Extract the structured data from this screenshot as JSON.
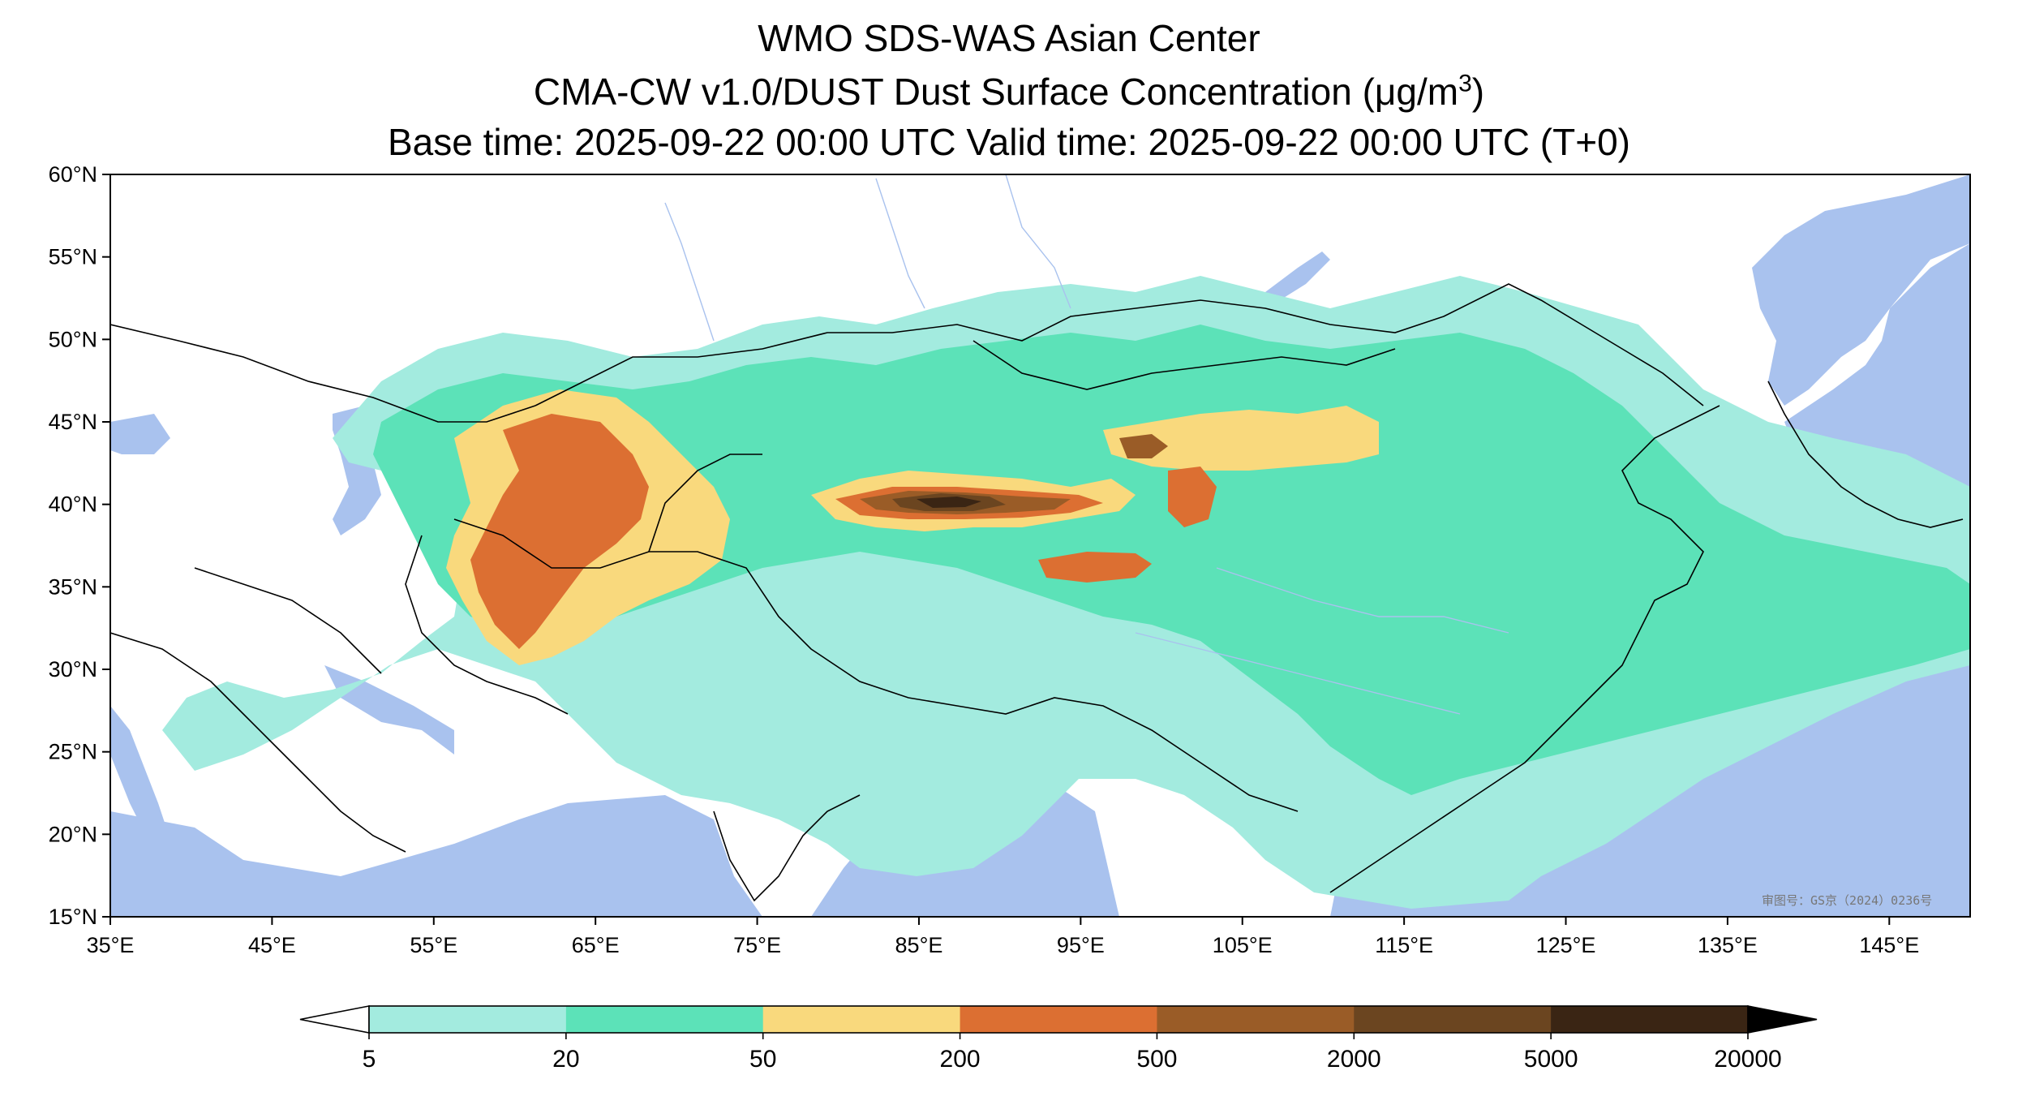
{
  "title": {
    "line1": "WMO SDS-WAS Asian Center",
    "line2_main": "CMA-CW v1.0/DUST Dust Surface Concentration (μg/m",
    "line2_sup": "3",
    "line2_end": ")",
    "line3": "Base time: 2025-09-22 00:00 UTC Valid time: 2025-09-22 00:00 UTC (T+0)"
  },
  "map": {
    "extent": {
      "lon_min": 35,
      "lon_max": 150,
      "lat_min": 15,
      "lat_max": 60
    },
    "lon_ticks": [
      {
        "value": 35,
        "label": "35°E"
      },
      {
        "value": 45,
        "label": "45°E"
      },
      {
        "value": 55,
        "label": "55°E"
      },
      {
        "value": 65,
        "label": "65°E"
      },
      {
        "value": 75,
        "label": "75°E"
      },
      {
        "value": 85,
        "label": "85°E"
      },
      {
        "value": 95,
        "label": "95°E"
      },
      {
        "value": 105,
        "label": "105°E"
      },
      {
        "value": 115,
        "label": "115°E"
      },
      {
        "value": 125,
        "label": "125°E"
      },
      {
        "value": 135,
        "label": "135°E"
      },
      {
        "value": 145,
        "label": "145°E"
      }
    ],
    "lat_ticks": [
      {
        "value": 60,
        "label": "60°N"
      },
      {
        "value": 55,
        "label": "55°N"
      },
      {
        "value": 50,
        "label": "50°N"
      },
      {
        "value": 45,
        "label": "45°N"
      },
      {
        "value": 40,
        "label": "40°N"
      },
      {
        "value": 35,
        "label": "35°N"
      },
      {
        "value": 30,
        "label": "30°N"
      },
      {
        "value": 25,
        "label": "25°N"
      },
      {
        "value": 20,
        "label": "20°N"
      },
      {
        "value": 15,
        "label": "15°N"
      }
    ],
    "watermark": "审图号：GS京（2024）0236号",
    "colors": {
      "water": "#a9c2ee",
      "land": "#ffffff",
      "borders": "#000000",
      "rivers": "#a9c2ee"
    }
  },
  "colorbar": {
    "levels": [
      "5",
      "20",
      "50",
      "200",
      "500",
      "2000",
      "5000",
      "20000"
    ],
    "colors": [
      "#a3ebdf",
      "#5ce2b8",
      "#f9d97d",
      "#dc6f32",
      "#9a5c27",
      "#6b4520",
      "#3a2514"
    ],
    "under_color": "#ffffff",
    "over_color": "#000000",
    "extend": "both"
  }
}
